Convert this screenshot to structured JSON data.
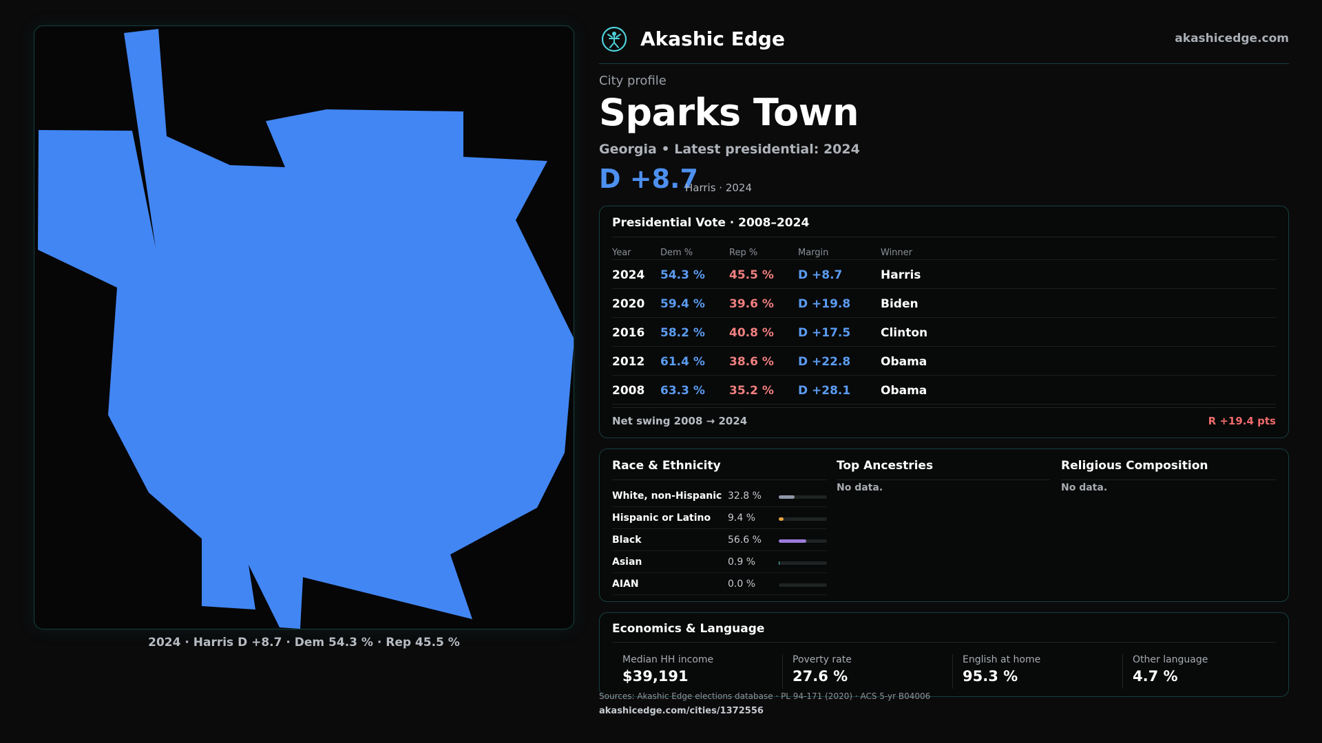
{
  "brand": {
    "name": "Akashic Edge",
    "url": "akashicedge.com",
    "accent": "#4fd1d9"
  },
  "profile": {
    "kicker": "City profile",
    "title": "Sparks Town",
    "subtitle": "Georgia • Latest presidential: 2024",
    "margin": "D +8.7",
    "margin_note": "Harris · 2024"
  },
  "map": {
    "caption": "2024 · Harris D +8.7 · Dem 54.3 % · Rep 45.5 %",
    "fill_color": "#4286f4"
  },
  "vote": {
    "title": "Presidential Vote · 2008–2024",
    "headers": {
      "year": "Year",
      "dem": "Dem %",
      "rep": "Rep %",
      "margin": "Margin",
      "winner": "Winner"
    },
    "rows": [
      {
        "year": "2024",
        "dem": "54.3 %",
        "rep": "45.5 %",
        "margin": "D +8.7",
        "winner": "Harris"
      },
      {
        "year": "2020",
        "dem": "59.4 %",
        "rep": "39.6 %",
        "margin": "D +19.8",
        "winner": "Biden"
      },
      {
        "year": "2016",
        "dem": "58.2 %",
        "rep": "40.8 %",
        "margin": "D +17.5",
        "winner": "Clinton"
      },
      {
        "year": "2012",
        "dem": "61.4 %",
        "rep": "38.6 %",
        "margin": "D +22.8",
        "winner": "Obama"
      },
      {
        "year": "2008",
        "dem": "63.3 %",
        "rep": "35.2 %",
        "margin": "D +28.1",
        "winner": "Obama"
      }
    ],
    "swing_label": "Net swing 2008 → 2024",
    "swing_value": "R +19.4 pts",
    "dem_color": "#5b9cf2",
    "rep_color": "#f07f7f"
  },
  "demographics": {
    "race_title": "Race & Ethnicity",
    "race": [
      {
        "name": "White, non-Hispanic",
        "value": "32.8 %",
        "fraction": 0.328,
        "color": "#8f97a8"
      },
      {
        "name": "Hispanic or Latino",
        "value": "9.4 %",
        "fraction": 0.094,
        "color": "#e6a23c"
      },
      {
        "name": "Black",
        "value": "56.6 %",
        "fraction": 0.566,
        "color": "#9b7bd9"
      },
      {
        "name": "Asian",
        "value": "0.9 %",
        "fraction": 0.009,
        "color": "#5bc0be"
      },
      {
        "name": "AIAN",
        "value": "0.0 %",
        "fraction": 0.0,
        "color": "#5bc0be"
      }
    ],
    "ancestry_title": "Top Ancestries",
    "ancestry_empty": "No data.",
    "religion_title": "Religious Composition",
    "religion_empty": "No data."
  },
  "economics": {
    "title": "Economics & Language",
    "stats": [
      {
        "label": "Median HH income",
        "value": "$39,191"
      },
      {
        "label": "Poverty rate",
        "value": "27.6 %"
      },
      {
        "label": "English at home",
        "value": "95.3 %"
      },
      {
        "label": "Other language",
        "value": "4.7 %"
      }
    ]
  },
  "footer": {
    "sources": "Sources: Akashic Edge elections database · PL 94-171 (2020) · ACS 5-yr B04006",
    "page_url": "akashicedge.com/cities/1372556"
  }
}
